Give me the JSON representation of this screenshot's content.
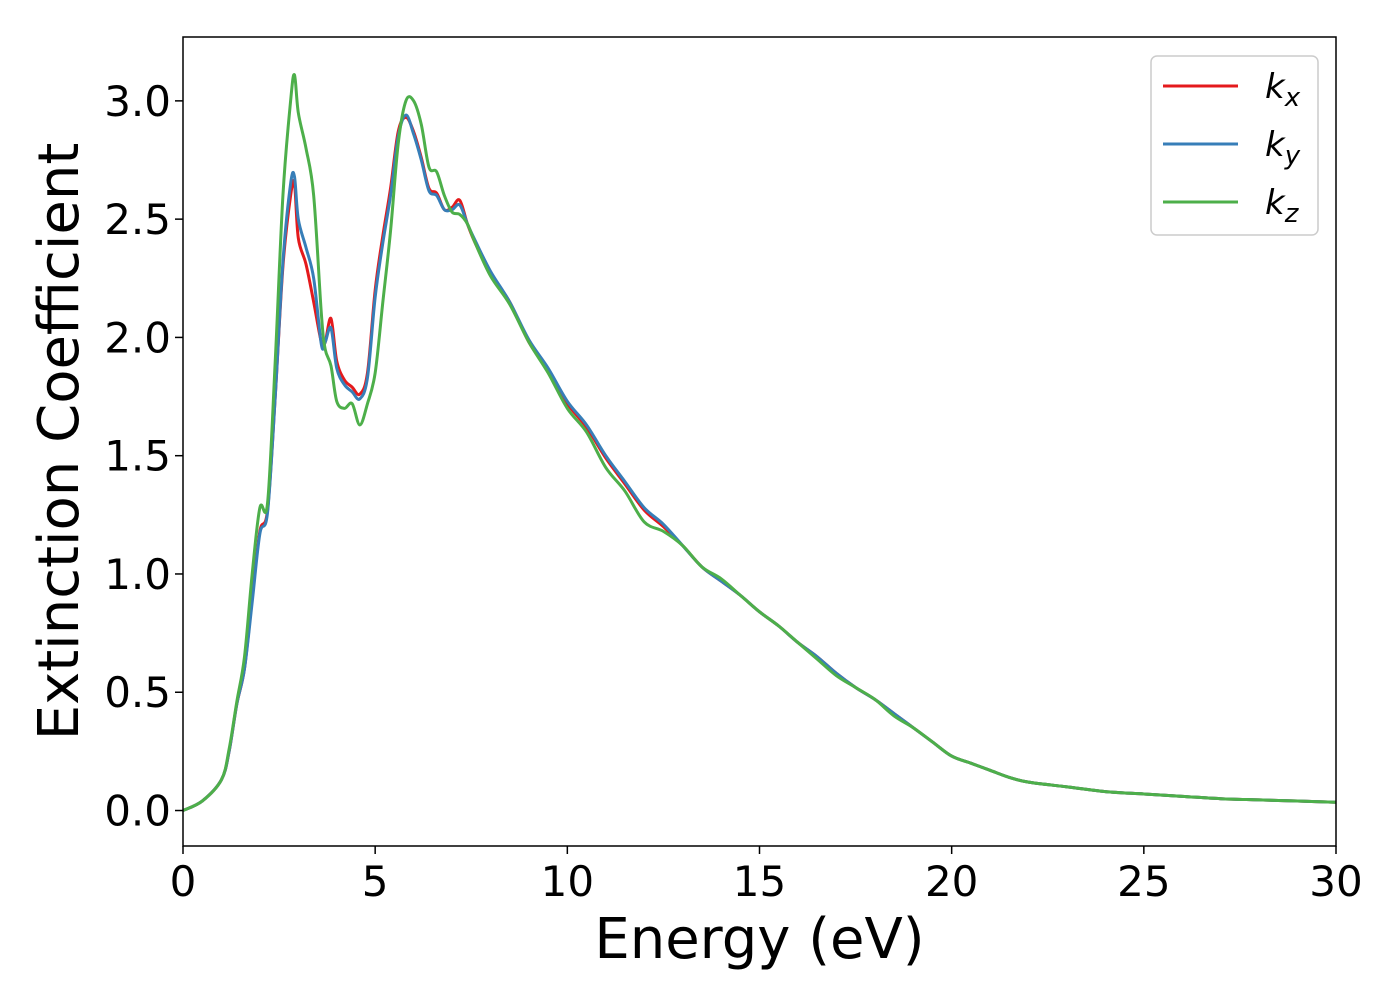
{
  "chart_data": {
    "type": "line",
    "title": "",
    "xlabel": "Energy (eV)",
    "ylabel": "Extinction Coefficient",
    "xlim": [
      0,
      30
    ],
    "ylim": [
      -0.15,
      3.27
    ],
    "xticks": [
      0,
      5,
      10,
      15,
      20,
      25,
      30
    ],
    "xtick_labels": [
      "0",
      "5",
      "10",
      "15",
      "20",
      "25",
      "30"
    ],
    "yticks": [
      0.0,
      0.5,
      1.0,
      1.5,
      2.0,
      2.5,
      3.0
    ],
    "ytick_labels": [
      "0.0",
      "0.5",
      "1.0",
      "1.5",
      "2.0",
      "2.5",
      "3.0"
    ],
    "grid": false,
    "legend_position": "top-right",
    "series": [
      {
        "name": "kx",
        "base": "k",
        "sub": "x",
        "color": "#e41a1c",
        "x": [
          0,
          0.5,
          1.0,
          1.2,
          1.4,
          1.6,
          1.8,
          2.0,
          2.2,
          2.4,
          2.6,
          2.8,
          2.9,
          3.0,
          3.2,
          3.4,
          3.6,
          3.7,
          3.85,
          4.0,
          4.2,
          4.4,
          4.6,
          4.8,
          5.0,
          5.2,
          5.4,
          5.6,
          5.8,
          6.0,
          6.2,
          6.4,
          6.6,
          6.8,
          7.0,
          7.2,
          7.4,
          7.6,
          8.0,
          8.5,
          9.0,
          9.5,
          10.0,
          10.5,
          11.0,
          11.5,
          12.0,
          12.5,
          13.0,
          13.5,
          14.0,
          14.5,
          15.0,
          15.5,
          16.0,
          16.5,
          17.0,
          17.5,
          18.0,
          18.5,
          19.0,
          19.5,
          20.0,
          20.5,
          21.0,
          21.5,
          22.0,
          23.0,
          24.0,
          25.0,
          26.0,
          27.0,
          28.0,
          29.0,
          30.0
        ],
        "y": [
          0.0,
          0.04,
          0.13,
          0.25,
          0.45,
          0.6,
          0.9,
          1.18,
          1.27,
          1.75,
          2.3,
          2.6,
          2.65,
          2.42,
          2.31,
          2.15,
          1.98,
          1.98,
          2.08,
          1.9,
          1.82,
          1.79,
          1.76,
          1.85,
          2.2,
          2.43,
          2.63,
          2.87,
          2.93,
          2.87,
          2.76,
          2.63,
          2.61,
          2.54,
          2.55,
          2.58,
          2.48,
          2.4,
          2.27,
          2.15,
          1.98,
          1.86,
          1.72,
          1.62,
          1.49,
          1.38,
          1.27,
          1.2,
          1.12,
          1.03,
          0.97,
          0.91,
          0.84,
          0.78,
          0.71,
          0.65,
          0.58,
          0.52,
          0.47,
          0.41,
          0.35,
          0.29,
          0.23,
          0.2,
          0.17,
          0.14,
          0.12,
          0.1,
          0.08,
          0.07,
          0.06,
          0.05,
          0.045,
          0.04,
          0.035
        ]
      },
      {
        "name": "ky",
        "base": "k",
        "sub": "y",
        "color": "#377eb8",
        "x": [
          0,
          0.5,
          1.0,
          1.2,
          1.4,
          1.6,
          1.8,
          2.0,
          2.2,
          2.4,
          2.6,
          2.8,
          2.9,
          3.0,
          3.2,
          3.4,
          3.6,
          3.7,
          3.85,
          4.0,
          4.2,
          4.4,
          4.6,
          4.8,
          5.0,
          5.2,
          5.4,
          5.6,
          5.8,
          6.0,
          6.2,
          6.4,
          6.6,
          6.8,
          7.0,
          7.2,
          7.4,
          7.6,
          8.0,
          8.5,
          9.0,
          9.5,
          10.0,
          10.5,
          11.0,
          11.5,
          12.0,
          12.5,
          13.0,
          13.5,
          14.0,
          14.5,
          15.0,
          15.5,
          16.0,
          16.5,
          17.0,
          17.5,
          18.0,
          18.5,
          19.0,
          19.5,
          20.0,
          20.5,
          21.0,
          21.5,
          22.0,
          23.0,
          24.0,
          25.0,
          26.0,
          27.0,
          28.0,
          29.0,
          30.0
        ],
        "y": [
          0.0,
          0.04,
          0.13,
          0.25,
          0.45,
          0.6,
          0.88,
          1.17,
          1.26,
          1.75,
          2.32,
          2.65,
          2.68,
          2.5,
          2.38,
          2.25,
          1.97,
          1.98,
          2.04,
          1.87,
          1.8,
          1.77,
          1.74,
          1.83,
          2.17,
          2.4,
          2.6,
          2.85,
          2.94,
          2.86,
          2.75,
          2.62,
          2.6,
          2.54,
          2.54,
          2.56,
          2.48,
          2.41,
          2.28,
          2.15,
          1.99,
          1.87,
          1.73,
          1.63,
          1.5,
          1.39,
          1.28,
          1.21,
          1.12,
          1.03,
          0.97,
          0.91,
          0.84,
          0.78,
          0.71,
          0.65,
          0.58,
          0.52,
          0.47,
          0.41,
          0.35,
          0.29,
          0.23,
          0.2,
          0.17,
          0.14,
          0.12,
          0.1,
          0.08,
          0.07,
          0.06,
          0.05,
          0.045,
          0.04,
          0.035
        ]
      },
      {
        "name": "kz",
        "base": "k",
        "sub": "z",
        "color": "#4daf4a",
        "x": [
          0,
          0.5,
          1.0,
          1.2,
          1.4,
          1.6,
          1.8,
          2.0,
          2.2,
          2.4,
          2.6,
          2.8,
          2.9,
          3.0,
          3.2,
          3.4,
          3.6,
          3.7,
          3.85,
          4.0,
          4.2,
          4.4,
          4.6,
          4.8,
          5.0,
          5.2,
          5.4,
          5.6,
          5.8,
          6.0,
          6.2,
          6.4,
          6.6,
          6.8,
          7.0,
          7.2,
          7.4,
          7.6,
          8.0,
          8.5,
          9.0,
          9.5,
          10.0,
          10.5,
          11.0,
          11.5,
          12.0,
          12.5,
          13.0,
          13.5,
          14.0,
          14.5,
          15.0,
          15.5,
          16.0,
          16.5,
          17.0,
          17.5,
          18.0,
          18.5,
          19.0,
          19.5,
          20.0,
          20.5,
          21.0,
          21.5,
          22.0,
          23.0,
          24.0,
          25.0,
          26.0,
          27.0,
          28.0,
          29.0,
          30.0
        ],
        "y": [
          0.0,
          0.04,
          0.13,
          0.26,
          0.46,
          0.65,
          1.0,
          1.28,
          1.3,
          1.9,
          2.6,
          3.0,
          3.11,
          2.95,
          2.8,
          2.6,
          2.1,
          1.95,
          1.88,
          1.73,
          1.7,
          1.72,
          1.63,
          1.72,
          1.85,
          2.15,
          2.45,
          2.82,
          3.0,
          3.0,
          2.9,
          2.72,
          2.7,
          2.6,
          2.53,
          2.52,
          2.48,
          2.4,
          2.26,
          2.14,
          1.98,
          1.85,
          1.7,
          1.6,
          1.45,
          1.35,
          1.22,
          1.18,
          1.12,
          1.03,
          0.98,
          0.91,
          0.84,
          0.78,
          0.71,
          0.64,
          0.57,
          0.52,
          0.47,
          0.4,
          0.35,
          0.29,
          0.23,
          0.2,
          0.17,
          0.14,
          0.12,
          0.1,
          0.08,
          0.07,
          0.06,
          0.05,
          0.045,
          0.04,
          0.035
        ]
      }
    ]
  }
}
